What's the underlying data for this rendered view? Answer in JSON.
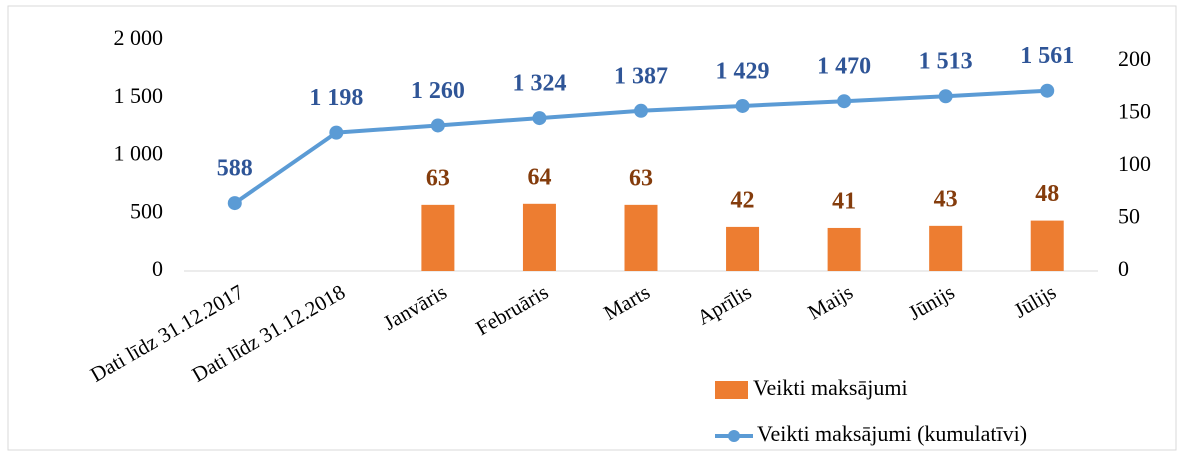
{
  "chart_data": {
    "type": "bar+line",
    "categories": [
      "Dati līdz 31.12.2017",
      "Dati līdz 31.12.2018",
      "Janvāris",
      "Februāris",
      "Marts",
      "Aprīlis",
      "Maijs",
      "Jūnijs",
      "Jūlijs"
    ],
    "series": [
      {
        "name": "Veikti maksājumi",
        "type": "bar",
        "axis": "y2",
        "color": "#ed7d31",
        "label_color": "#843c0c",
        "values": [
          null,
          null,
          63,
          64,
          63,
          42,
          41,
          43,
          48
        ]
      },
      {
        "name": "Veikti maksājumi (kumulatīvi)",
        "type": "line",
        "axis": "y",
        "color": "#5b9bd5",
        "label_color": "#2f5597",
        "values": [
          588,
          1198,
          1260,
          1324,
          1387,
          1429,
          1470,
          1513,
          1561
        ],
        "value_labels": [
          "588",
          "1 198",
          "1 260",
          "1 324",
          "1 387",
          "1 429",
          "1 470",
          "1 513",
          "1 561"
        ]
      }
    ],
    "ylim": [
      0,
      2000
    ],
    "yticks": [
      0,
      500,
      {
        "value": 1000,
        "label": "1 000"
      },
      {
        "value": 1500,
        "label": "1 500"
      },
      {
        "value": 2000,
        "label": "2 000"
      }
    ],
    "y2lim": [
      0,
      220
    ],
    "y2ticks": [
      0,
      50,
      100,
      150,
      200
    ],
    "legend": "bottom-right"
  }
}
